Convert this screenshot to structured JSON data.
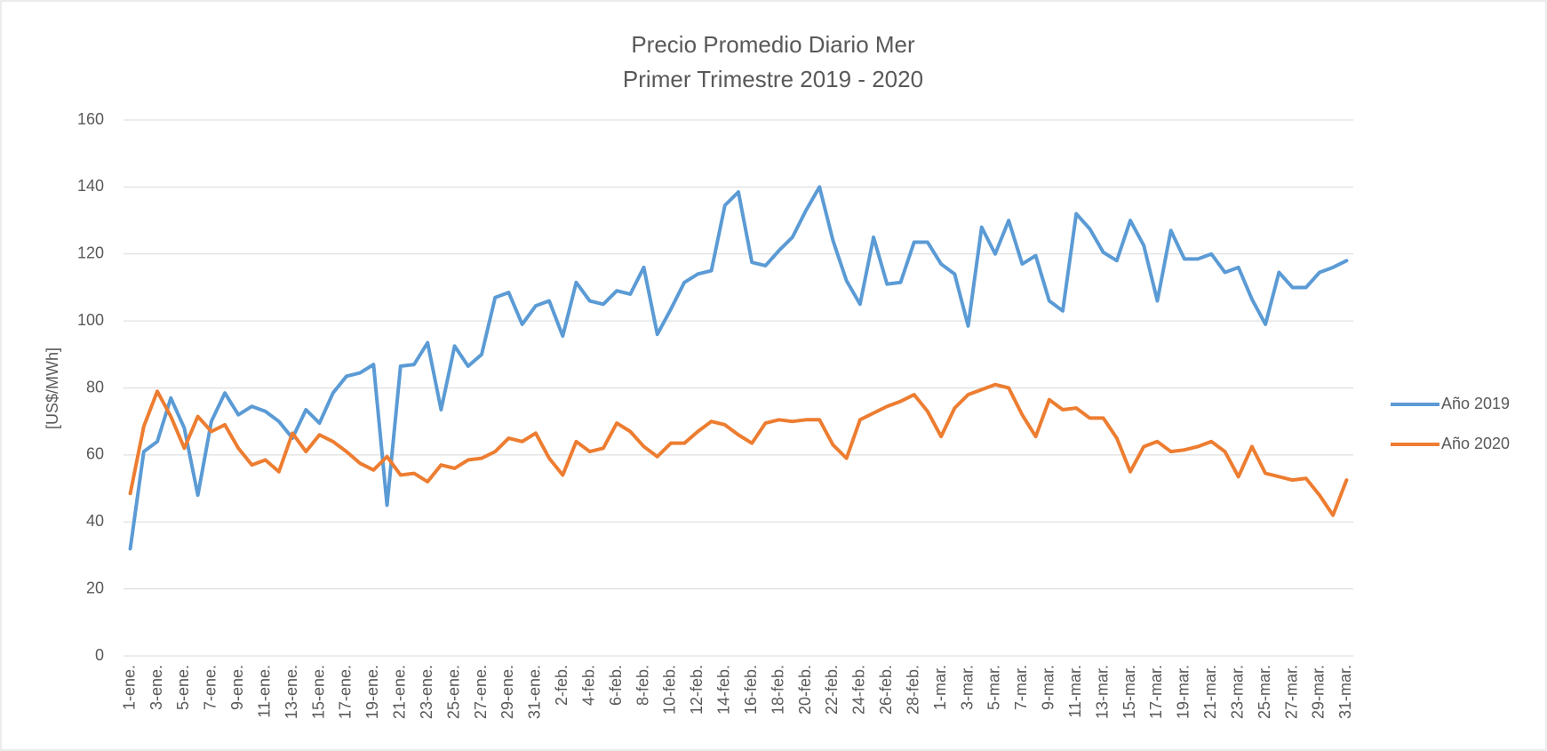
{
  "chart_data": {
    "type": "line",
    "title": "Precio Promedio Diario Mer",
    "subtitle": "Primer Trimestre 2019 - 2020",
    "y_label": "[US$/MWh]",
    "categories": [
      "1-ene.",
      null,
      "3-ene.",
      null,
      "5-ene.",
      null,
      "7-ene.",
      null,
      "9-ene.",
      null,
      "11-ene.",
      null,
      "13-ene.",
      null,
      "15-ene.",
      null,
      "17-ene.",
      null,
      "19-ene.",
      null,
      "21-ene.",
      null,
      "23-ene.",
      null,
      "25-ene.",
      null,
      "27-ene.",
      null,
      "29-ene.",
      null,
      "31-ene.",
      null,
      "2-feb.",
      null,
      "4-feb.",
      null,
      "6-feb.",
      null,
      "8-feb.",
      null,
      "10-feb.",
      null,
      "12-feb.",
      null,
      "14-feb.",
      null,
      "16-feb.",
      null,
      "18-feb.",
      null,
      "20-feb.",
      null,
      "22-feb.",
      null,
      "24-feb.",
      null,
      "26-feb.",
      null,
      "28-feb.",
      null,
      "1-mar.",
      null,
      "3-mar.",
      null,
      "5-mar.",
      null,
      "7-mar.",
      null,
      "9-mar.",
      null,
      "11-mar.",
      null,
      "13-mar.",
      null,
      "15-mar.",
      null,
      "17-mar.",
      null,
      "19-mar.",
      null,
      "21-mar.",
      null,
      "23-mar.",
      null,
      "25-mar.",
      null,
      "27-mar.",
      null,
      "29-mar.",
      null,
      "31-mar."
    ],
    "series": [
      {
        "name": "Año 2019",
        "color": "#5b9bd5",
        "values": [
          32,
          61,
          64,
          77,
          68,
          48,
          70,
          78.5,
          72,
          74.5,
          73,
          70,
          65,
          73.5,
          69.5,
          78.5,
          83.5,
          84.5,
          87,
          45,
          86.5,
          87,
          93.5,
          73.5,
          92.5,
          86.5,
          90,
          107,
          108.5,
          99,
          104.5,
          106,
          95.5,
          111.5,
          106,
          105,
          109,
          108,
          116,
          96,
          103.5,
          111.5,
          114,
          115,
          134.5,
          138.5,
          117.5,
          116.5,
          121,
          125,
          133,
          140,
          124,
          112,
          105,
          125,
          111,
          111.5,
          123.5,
          123.5,
          117,
          114,
          98.5,
          128,
          120,
          130,
          117,
          119.5,
          106,
          103,
          132,
          127.5,
          120.5,
          118,
          130,
          122.5,
          106,
          127,
          118.5,
          118.5,
          120,
          114.5,
          116,
          106.5,
          99,
          114.5,
          110,
          110,
          114.5,
          116,
          118
        ]
      },
      {
        "name": "Año 2020",
        "color": "#ed7d31",
        "values": [
          48.5,
          68.5,
          79,
          71.5,
          62,
          71.5,
          67,
          69,
          62,
          57,
          58.5,
          55,
          66.5,
          61,
          66,
          64,
          61,
          57.5,
          55.5,
          59.5,
          54,
          54.5,
          52,
          57,
          56,
          58.5,
          59,
          61,
          65,
          64,
          66.5,
          59,
          54,
          64,
          61,
          62,
          69.5,
          67,
          62.5,
          59.5,
          63.5,
          63.5,
          67,
          70,
          69,
          66,
          63.5,
          69.5,
          70.5,
          70,
          70.5,
          70.5,
          63,
          59,
          70.5,
          72.5,
          74.5,
          76,
          78,
          73,
          65.5,
          74,
          78,
          79.5,
          81,
          80,
          72,
          65.5,
          76.5,
          73.5,
          74,
          71,
          71,
          65,
          55,
          62.5,
          64,
          61,
          61.5,
          62.5,
          64,
          61,
          53.5,
          62.5,
          54.5,
          53.5,
          52.5,
          53,
          48,
          42,
          52.5
        ]
      }
    ],
    "ylim": [
      0,
      160
    ],
    "yticks": [
      0,
      20,
      40,
      60,
      80,
      100,
      120,
      140,
      160
    ],
    "grid": true,
    "legend": "right"
  }
}
